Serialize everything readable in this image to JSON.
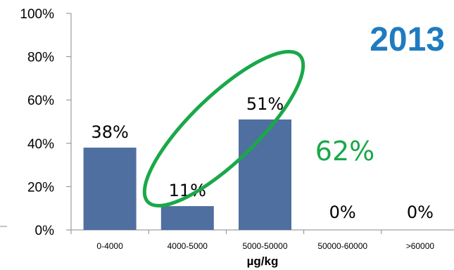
{
  "chart_data": {
    "type": "bar",
    "title": "2013",
    "categories": [
      "0-4000",
      "4000-5000",
      "5000-50000",
      "50000-60000",
      ">60000"
    ],
    "values": [
      38,
      11,
      51,
      0,
      0
    ],
    "data_labels": [
      "38%",
      "11%",
      "51%",
      "0%",
      "0%"
    ],
    "xlabel": "µg/kg",
    "ylabel": "",
    "ylim": [
      0,
      100
    ],
    "yticks": [
      "0%",
      "20%",
      "40%",
      "60%",
      "80%",
      "100%"
    ],
    "grid": false,
    "annotation": "62%",
    "colors": {
      "bar": "#4f6fa0",
      "title": "#1f7bc0",
      "annotation": "#1aa84a",
      "ellipse": "#1aa84a",
      "axis": "#8a8a8a"
    }
  }
}
